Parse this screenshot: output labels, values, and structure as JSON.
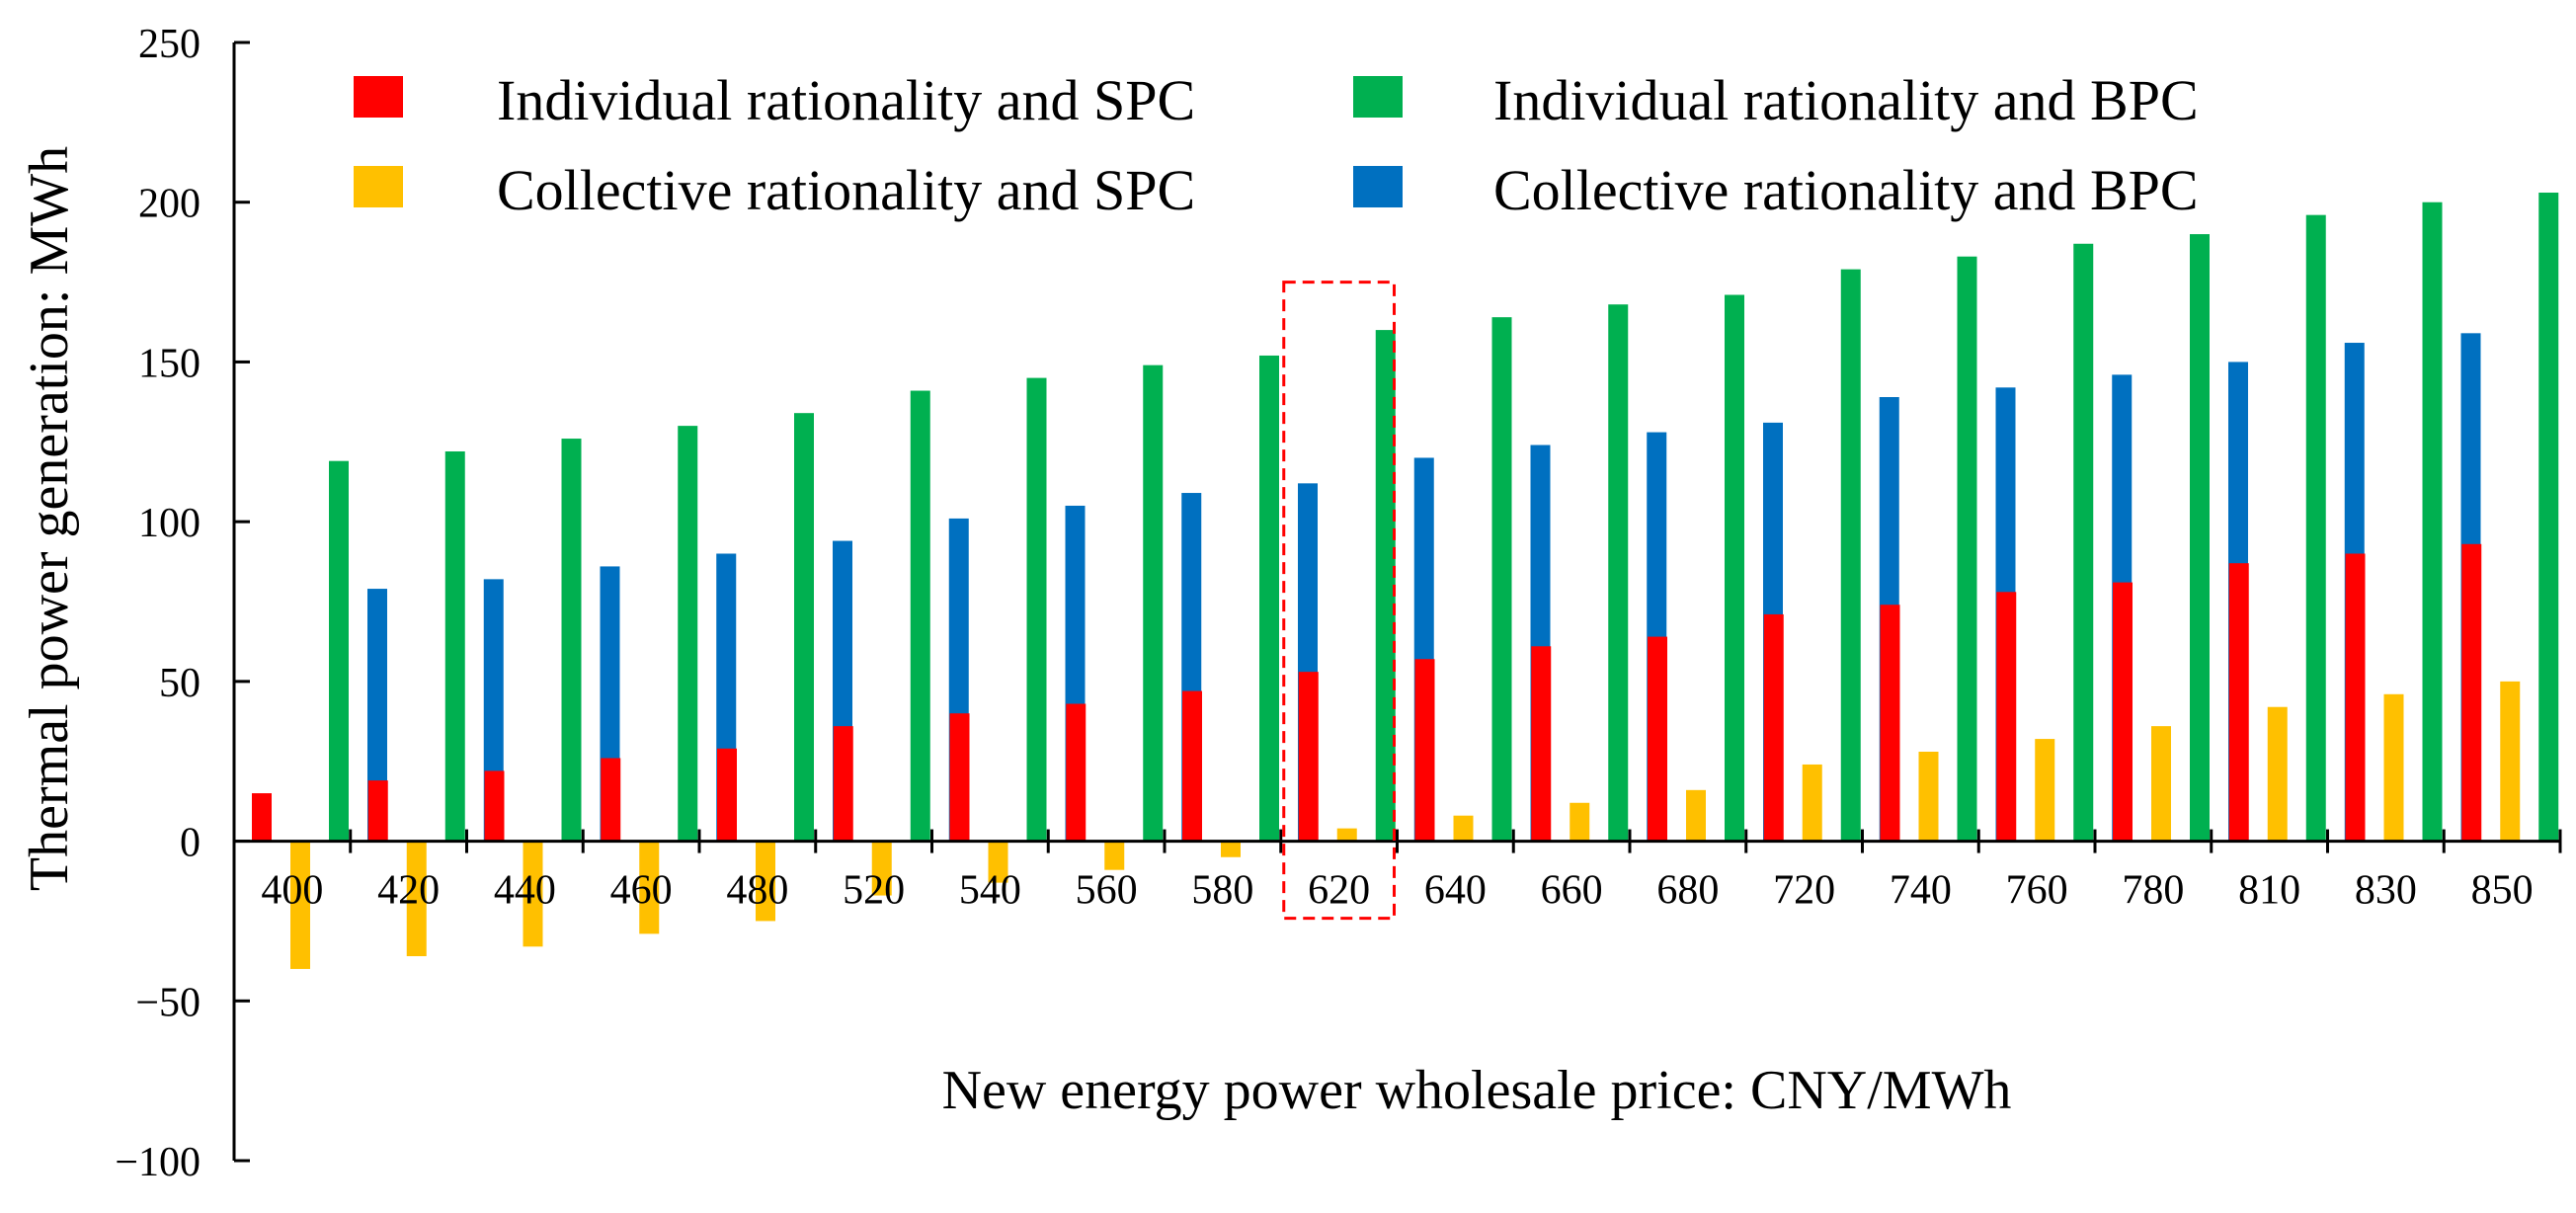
{
  "chart_data": {
    "type": "bar",
    "xlabel": "New energy power wholesale price: CNY/MWh",
    "ylabel": "Thermal power generation:  MWh",
    "ylim": [
      -100,
      250
    ],
    "yticks": [
      "-100",
      "-50",
      "0",
      "50",
      "100",
      "150",
      "200",
      "250"
    ],
    "grid": false,
    "legend_position": "top",
    "categories": [
      "400",
      "420",
      "440",
      "460",
      "480",
      "520",
      "540",
      "560",
      "580",
      "620",
      "640",
      "660",
      "680",
      "720",
      "740",
      "760",
      "780",
      "810",
      "830",
      "850"
    ],
    "highlight_category": "620",
    "series": [
      {
        "name": "Individual rationality and SPC",
        "color": "#ff0000",
        "values": [
          15,
          19,
          22,
          26,
          29,
          36,
          40,
          43,
          47,
          53,
          57,
          61,
          64,
          71,
          74,
          78,
          81,
          87,
          90,
          93
        ]
      },
      {
        "name": "Collective rationality and SPC",
        "color": "#ffc000",
        "values": [
          -40,
          -36,
          -33,
          -29,
          -25,
          -17,
          -13,
          -9,
          -5,
          4,
          8,
          12,
          16,
          24,
          28,
          32,
          36,
          42,
          46,
          50
        ]
      },
      {
        "name": "Individual rationality and BPC",
        "color": "#00b050",
        "values": [
          119,
          122,
          126,
          130,
          134,
          141,
          145,
          149,
          152,
          160,
          164,
          168,
          171,
          179,
          183,
          187,
          190,
          196,
          200,
          203
        ]
      },
      {
        "name": "Collective rationality and BPC",
        "color": "#0070c0",
        "values": [
          79,
          82,
          86,
          90,
          94,
          101,
          105,
          109,
          112,
          120,
          124,
          128,
          131,
          139,
          142,
          146,
          150,
          156,
          159,
          163
        ]
      }
    ],
    "legend_order": [
      0,
      2,
      1,
      3
    ]
  }
}
